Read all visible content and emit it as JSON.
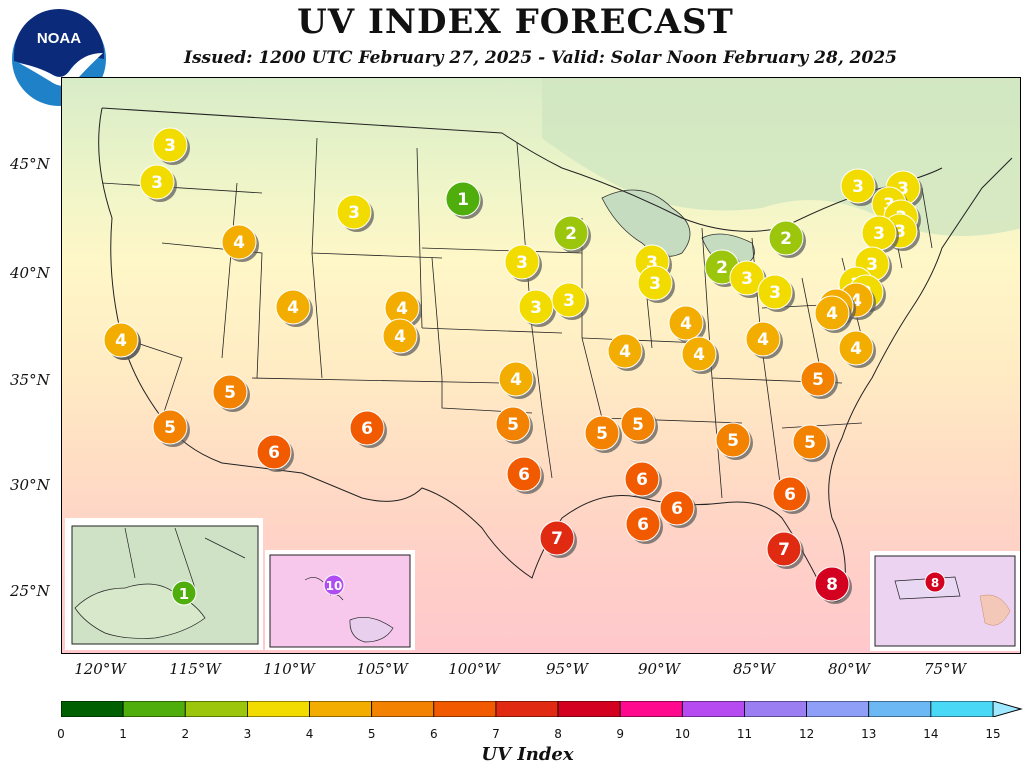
{
  "header": {
    "title": "UV INDEX FORECAST",
    "subtitle": "Issued: 1200 UTC February 27, 2025 - Valid: Solar Noon February 28, 2025",
    "logo_text": "NOAA"
  },
  "map": {
    "lat_labels": [
      "45°N",
      "40°N",
      "35°N",
      "30°N",
      "25°N"
    ],
    "lon_labels": [
      "120°W",
      "115°W",
      "110°W",
      "105°W",
      "100°W",
      "95°W",
      "90°W",
      "85°W",
      "80°W",
      "75°W"
    ],
    "markers": [
      {
        "id": "seattle",
        "value": "3",
        "color": "#f2dc00"
      },
      {
        "id": "portland",
        "value": "3",
        "color": "#f2dc00"
      },
      {
        "id": "boise",
        "value": "4",
        "color": "#f2ad00"
      },
      {
        "id": "billings",
        "value": "3",
        "color": "#f2dc00"
      },
      {
        "id": "bismarck",
        "value": "1",
        "color": "#4fae0b"
      },
      {
        "id": "minneapolis",
        "value": "2",
        "color": "#9bc60c"
      },
      {
        "id": "reno",
        "value": "4",
        "color": "#f2ad00"
      },
      {
        "id": "salt-lake",
        "value": "4",
        "color": "#f2ad00"
      },
      {
        "id": "denver",
        "value": "4",
        "color": "#f2ad00"
      },
      {
        "id": "cheyenne",
        "value": "4",
        "color": "#f2ad00"
      },
      {
        "id": "omaha",
        "value": "3",
        "color": "#f2dc00"
      },
      {
        "id": "des-moines",
        "value": "3",
        "color": "#f2dc00"
      },
      {
        "id": "kansas-city",
        "value": "3",
        "color": "#f2dc00"
      },
      {
        "id": "chicago",
        "value": "3",
        "color": "#f2dc00"
      },
      {
        "id": "peoria",
        "value": "3",
        "color": "#f2dc00"
      },
      {
        "id": "detroit",
        "value": "2",
        "color": "#9bc60c"
      },
      {
        "id": "toronto",
        "value": "2",
        "color": "#9bc60c"
      },
      {
        "id": "cleveland",
        "value": "3",
        "color": "#f2dc00"
      },
      {
        "id": "pittsburgh",
        "value": "3",
        "color": "#f2dc00"
      },
      {
        "id": "albany",
        "value": "3",
        "color": "#f2dc00"
      },
      {
        "id": "burlington",
        "value": "3",
        "color": "#f2dc00"
      },
      {
        "id": "portland-me",
        "value": "3",
        "color": "#f2dc00"
      },
      {
        "id": "concord",
        "value": "3",
        "color": "#f2dc00"
      },
      {
        "id": "boston",
        "value": "3",
        "color": "#f2dc00"
      },
      {
        "id": "hartford",
        "value": "3",
        "color": "#f2dc00"
      },
      {
        "id": "providence",
        "value": "3",
        "color": "#f2dc00"
      },
      {
        "id": "new-york",
        "value": "3",
        "color": "#f2dc00"
      },
      {
        "id": "philadelphia",
        "value": "3",
        "color": "#f2dc00"
      },
      {
        "id": "trenton",
        "value": "4",
        "color": "#f2ad00"
      },
      {
        "id": "baltimore",
        "value": "4",
        "color": "#f2ad00"
      },
      {
        "id": "washington",
        "value": "4",
        "color": "#f2ad00"
      },
      {
        "id": "norfolk",
        "value": "4",
        "color": "#f2ad00"
      },
      {
        "id": "los-angeles",
        "value": "4",
        "color": "#f2ad00"
      },
      {
        "id": "st-louis",
        "value": "4",
        "color": "#f2ad00"
      },
      {
        "id": "louisville",
        "value": "4",
        "color": "#f2ad00"
      },
      {
        "id": "lexington",
        "value": "4",
        "color": "#f2ad00"
      },
      {
        "id": "charleston-wv",
        "value": "4",
        "color": "#f2ad00"
      },
      {
        "id": "wichita",
        "value": "4",
        "color": "#f2ad00"
      },
      {
        "id": "raleigh",
        "value": "5",
        "color": "#f28200"
      },
      {
        "id": "las-vegas",
        "value": "5",
        "color": "#f28200"
      },
      {
        "id": "san-diego",
        "value": "5",
        "color": "#f28200"
      },
      {
        "id": "oklahoma-city",
        "value": "5",
        "color": "#f28200"
      },
      {
        "id": "little-rock",
        "value": "5",
        "color": "#f28200"
      },
      {
        "id": "memphis",
        "value": "5",
        "color": "#f28200"
      },
      {
        "id": "atlanta",
        "value": "5",
        "color": "#f28200"
      },
      {
        "id": "columbia",
        "value": "5",
        "color": "#f28200"
      },
      {
        "id": "phoenix",
        "value": "6",
        "color": "#f25a00"
      },
      {
        "id": "albuquerque",
        "value": "6",
        "color": "#f25a00"
      },
      {
        "id": "dallas",
        "value": "6",
        "color": "#f25a00"
      },
      {
        "id": "jackson",
        "value": "6",
        "color": "#f25a00"
      },
      {
        "id": "new-orleans",
        "value": "6",
        "color": "#f25a00"
      },
      {
        "id": "mobile",
        "value": "6",
        "color": "#f25a00"
      },
      {
        "id": "jacksonville",
        "value": "6",
        "color": "#f25a00"
      },
      {
        "id": "houston",
        "value": "7",
        "color": "#e12a12"
      },
      {
        "id": "tampa",
        "value": "7",
        "color": "#e12a12"
      },
      {
        "id": "miami",
        "value": "8",
        "color": "#d4001f"
      }
    ],
    "insets": {
      "alaska": {
        "value": "1",
        "color": "#4fae0b"
      },
      "hawaii": {
        "value": "10",
        "color": "#b04df2"
      },
      "puerto_rico": {
        "value": "8",
        "color": "#d4001f"
      }
    }
  },
  "colorbar": {
    "label": "UV Index",
    "ticks": [
      "0",
      "1",
      "2",
      "3",
      "4",
      "5",
      "6",
      "7",
      "8",
      "9",
      "10",
      "11",
      "12",
      "13",
      "14",
      "15"
    ],
    "colors": [
      "#005f00",
      "#4fae0b",
      "#9bc60c",
      "#f2dc00",
      "#f2ad00",
      "#f28200",
      "#f25a00",
      "#e12a12",
      "#d4001f",
      "#ff0a8f",
      "#b64bf2",
      "#9b7ff2",
      "#8f9ef7",
      "#6bb8f5",
      "#4ad8f7"
    ],
    "extend_color": "#9fe8ff"
  }
}
